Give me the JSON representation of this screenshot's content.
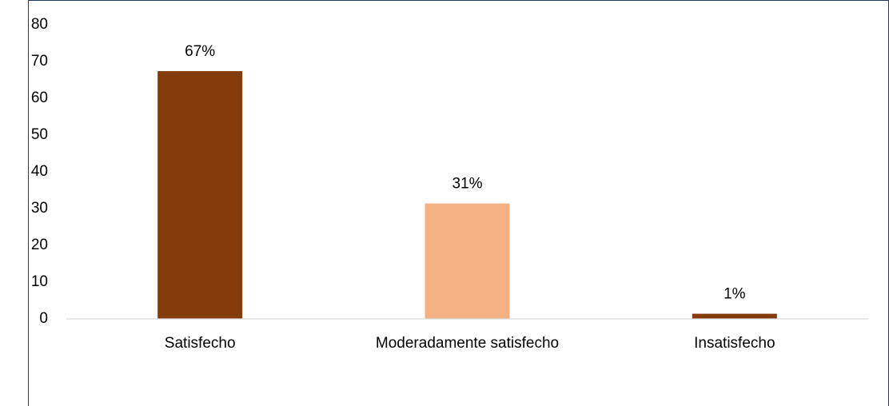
{
  "chart_data": {
    "type": "bar",
    "categories": [
      "Satisfecho",
      "Moderadamente satisfecho",
      "Insatisfecho"
    ],
    "values": [
      67.4,
      31.4,
      1.4
    ],
    "value_labels": [
      "67%",
      "31%",
      "1%"
    ],
    "colors": [
      "#843c0c",
      "#f4b183",
      "#843c0c"
    ],
    "ylim": [
      0,
      80
    ],
    "yticks": [
      0,
      10,
      20,
      30,
      40,
      50,
      60,
      70,
      80
    ],
    "grid": false
  }
}
